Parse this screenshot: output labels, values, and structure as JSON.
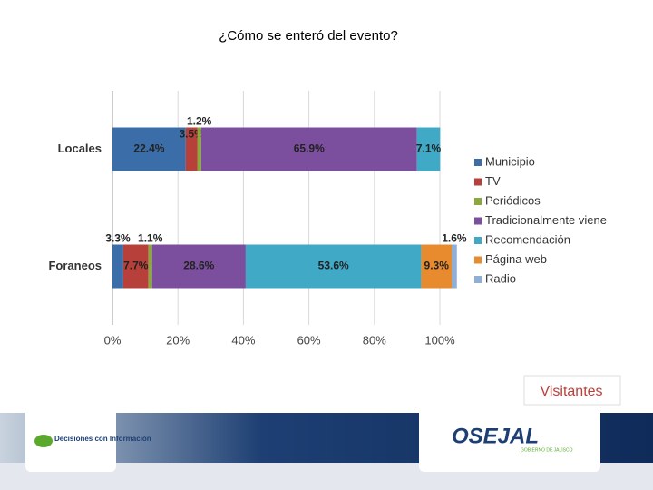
{
  "chart_data": {
    "type": "stacked-bar-horizontal",
    "title": "¿Cómo se enteró del evento?",
    "categories": [
      "Locales",
      "Foraneos"
    ],
    "series": [
      {
        "name": "Municipio",
        "color": "#3b6ea8",
        "values": [
          22.4,
          3.3
        ],
        "value_labels": [
          "22.4%",
          "3.3%"
        ]
      },
      {
        "name": "TV",
        "color": "#b8403a",
        "values": [
          3.5,
          7.7
        ],
        "value_labels": [
          "3.5%",
          "7.7%"
        ]
      },
      {
        "name": "Periódicos",
        "color": "#8aa83e",
        "values": [
          1.2,
          1.1
        ],
        "value_labels": [
          "1.2%",
          "1.1%"
        ]
      },
      {
        "name": "Tradicionalmente viene",
        "color": "#7b4f9e",
        "values": [
          65.9,
          28.6
        ],
        "value_labels": [
          "65.9%",
          "28.6%"
        ]
      },
      {
        "name": "Recomendación",
        "color": "#3fa9c6",
        "values": [
          7.1,
          53.6
        ],
        "value_labels": [
          "7.1%",
          "53.6%"
        ]
      },
      {
        "name": "Página web",
        "color": "#e88b2e",
        "values": [
          null,
          9.3
        ],
        "value_labels": [
          null,
          "9.3%"
        ]
      },
      {
        "name": "Radio",
        "color": "#8fb0d6",
        "values": [
          null,
          1.6
        ],
        "value_labels": [
          null,
          "1.6%"
        ]
      }
    ],
    "xlim": [
      0,
      100
    ],
    "xticks": [
      {
        "value": 0,
        "label": "0%"
      },
      {
        "value": 20,
        "label": "20%"
      },
      {
        "value": 40,
        "label": "40%"
      },
      {
        "value": 60,
        "label": "60%"
      },
      {
        "value": 80,
        "label": "80%"
      },
      {
        "value": 100,
        "label": "100%"
      }
    ],
    "grid": true,
    "legend": "right"
  },
  "caption": "Visitantes",
  "logos": [
    "Decisiones con Información",
    "OSEJAL",
    "GOBIERNO DE JALISCO"
  ]
}
